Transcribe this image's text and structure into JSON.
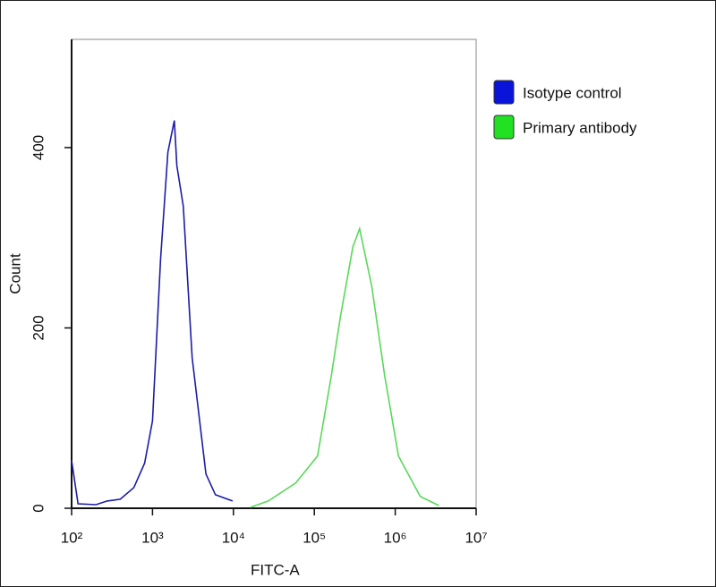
{
  "chart_data": {
    "type": "line",
    "x_label": "FITC-A",
    "y_label": "Count",
    "x_scale": "log",
    "xlim": [
      100,
      10000000
    ],
    "ylim": [
      0,
      520
    ],
    "xticks": [
      {
        "value": 100,
        "label": "10²"
      },
      {
        "value": 1000,
        "label": "10³"
      },
      {
        "value": 10000,
        "label": "10⁴"
      },
      {
        "value": 100000,
        "label": "10⁵"
      },
      {
        "value": 1000000,
        "label": "10⁶"
      },
      {
        "value": 10000000,
        "label": "10⁷"
      }
    ],
    "yticks": [
      0,
      200,
      400
    ],
    "legend": "top-right",
    "series": [
      {
        "name": "Isotype control",
        "color": "#1c1ca8",
        "legend_color": "#0a14d8",
        "x": [
          100,
          120,
          200,
          275,
          400,
          589,
          800,
          1000,
          1259,
          1550,
          1862,
          2000,
          2399,
          3090,
          4571,
          6000,
          9772
        ],
        "values": [
          53,
          5,
          4,
          8,
          10,
          23,
          50,
          97,
          276,
          395,
          430,
          380,
          335,
          167,
          38,
          15,
          8
        ]
      },
      {
        "name": "Primary antibody",
        "color": "#5ad85a",
        "legend_color": "#22e022",
        "x": [
          16218,
          26915,
          58884,
          109648,
          162181,
          208930,
          300000,
          363078,
          512861,
          741310,
          1096478,
          2041738,
          3467369
        ],
        "values": [
          1,
          8,
          28,
          58,
          147,
          211,
          290,
          310,
          246,
          147,
          58,
          13,
          3
        ]
      }
    ]
  }
}
